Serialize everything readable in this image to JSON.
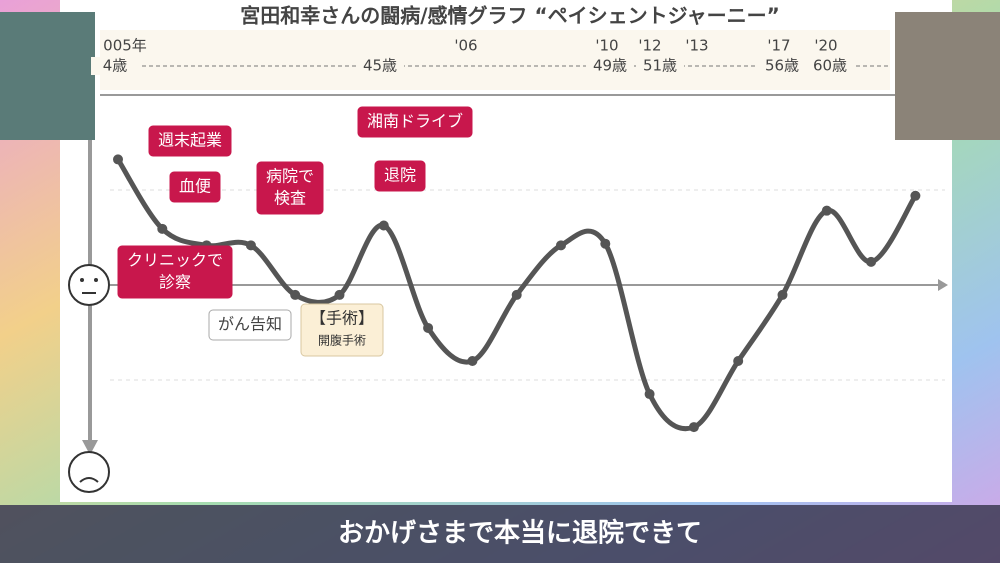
{
  "chart_data": {
    "type": "line",
    "title": "宮田和幸さんの闘病/感情グラフ “ペイシェントジャーニー”",
    "timeline": [
      "005年",
      "4歳",
      "45歳",
      "'06",
      "'10",
      "49歳",
      "'12",
      "51歳",
      "'13",
      "'17",
      "56歳",
      "'20",
      "60歳"
    ],
    "categories": [
      null,
      null,
      null,
      null,
      null,
      null,
      null,
      null,
      null,
      null,
      null,
      null,
      null,
      null,
      null,
      null,
      null,
      null,
      null
    ],
    "series": [
      {
        "name": null,
        "color": "#555555",
        "values": [
          0.81,
          0.39,
          0.29,
          0.29,
          -0.01,
          -0.01,
          0.41,
          -0.21,
          -0.41,
          -0.01,
          0.29,
          0.3,
          -0.61,
          -0.81,
          -0.41,
          -0.01,
          0.5,
          0.19,
          0.59
        ]
      }
    ],
    "ylim": [
      -1.1,
      1.2
    ],
    "annotations": [
      {
        "lines": [
          "週末起業"
        ],
        "style": "red"
      },
      {
        "lines": [
          "血便"
        ],
        "style": "red"
      },
      {
        "lines": [
          "病院で",
          "検査"
        ],
        "style": "red"
      },
      {
        "lines": [
          "クリニックで",
          "診察"
        ],
        "style": "red"
      },
      {
        "lines": [
          "湘南ドライブ"
        ],
        "style": "red"
      },
      {
        "lines": [
          "退院"
        ],
        "style": "red"
      },
      {
        "lines": [
          "がん告知"
        ],
        "style": "white"
      },
      {
        "lines": [
          "【手術】",
          "開腹手術"
        ],
        "style": "beige"
      }
    ],
    "subtitle": "おかげさまで本当に退院できて"
  }
}
